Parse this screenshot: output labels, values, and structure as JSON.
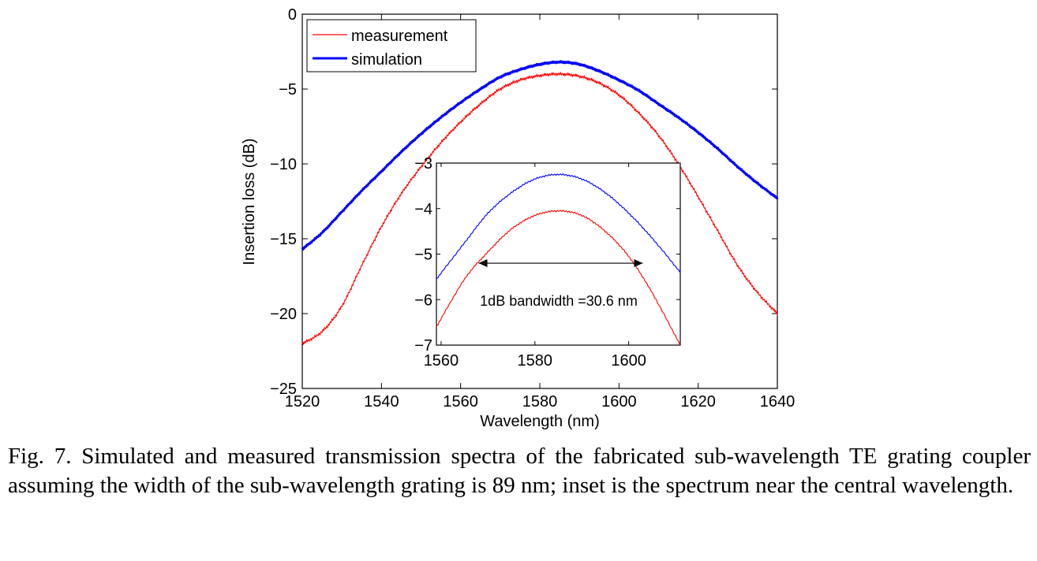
{
  "chart_data": [
    {
      "type": "line",
      "xlabel": "Wavelength (nm)",
      "ylabel": "Insertion loss (dB)",
      "xlim": [
        1520,
        1640
      ],
      "ylim": [
        -25,
        0
      ],
      "xticks": [
        1520,
        1540,
        1560,
        1580,
        1600,
        1620,
        1640
      ],
      "yticks": [
        0,
        -5,
        -10,
        -15,
        -20,
        -25
      ],
      "xtick_labels": [
        "1520",
        "1540",
        "1560",
        "1580",
        "1600",
        "1620",
        "1640"
      ],
      "ytick_labels": [
        "0",
        "−5",
        "−10",
        "−15",
        "−20",
        "−25"
      ],
      "legend_position": "top-left",
      "grid": false,
      "series": [
        {
          "name": "measurement",
          "color": "#ff0000",
          "x": [
            1520,
            1525,
            1530,
            1535,
            1540,
            1545,
            1550,
            1555,
            1560,
            1565,
            1570,
            1575,
            1580,
            1585,
            1590,
            1595,
            1600,
            1605,
            1610,
            1615,
            1620,
            1625,
            1630,
            1635,
            1640
          ],
          "y": [
            -22.0,
            -21.2,
            -19.5,
            -16.8,
            -14.2,
            -12.0,
            -10.2,
            -8.6,
            -7.2,
            -6.0,
            -5.0,
            -4.4,
            -4.1,
            -4.0,
            -4.15,
            -4.6,
            -5.4,
            -6.6,
            -8.1,
            -10.0,
            -12.2,
            -14.5,
            -16.8,
            -18.6,
            -20.0
          ]
        },
        {
          "name": "simulation",
          "color": "#0000ff",
          "x": [
            1520,
            1525,
            1530,
            1535,
            1540,
            1545,
            1550,
            1555,
            1560,
            1565,
            1570,
            1575,
            1580,
            1585,
            1590,
            1595,
            1600,
            1605,
            1610,
            1615,
            1620,
            1625,
            1630,
            1635,
            1640
          ],
          "y": [
            -15.7,
            -14.6,
            -13.2,
            -11.8,
            -10.5,
            -9.2,
            -8.0,
            -6.9,
            -5.9,
            -5.0,
            -4.2,
            -3.7,
            -3.35,
            -3.2,
            -3.35,
            -3.8,
            -4.4,
            -5.1,
            -6.0,
            -6.9,
            -7.9,
            -9.0,
            -10.2,
            -11.3,
            -12.3
          ]
        }
      ]
    },
    {
      "type": "line",
      "inset": true,
      "xlim": [
        1559,
        1611
      ],
      "ylim": [
        -7,
        -3
      ],
      "xticks": [
        1560,
        1580,
        1600
      ],
      "yticks": [
        -3,
        -4,
        -5,
        -6,
        -7
      ],
      "xtick_labels": [
        "1560",
        "1580",
        "1600"
      ],
      "ytick_labels": [
        "−3",
        "−4",
        "−5",
        "−6",
        "−7"
      ],
      "annotation": {
        "text": "1dB bandwidth =30.6 nm",
        "arrow_x_range": [
          1568,
          1603
        ],
        "arrow_y": -5.2
      },
      "series": [
        {
          "color": "#ff0000",
          "x": [
            1559,
            1565,
            1570,
            1575,
            1580,
            1585,
            1590,
            1595,
            1600,
            1605,
            1611
          ],
          "y": [
            -6.6,
            -5.55,
            -4.95,
            -4.45,
            -4.15,
            -4.05,
            -4.15,
            -4.5,
            -5.05,
            -5.85,
            -7.0
          ]
        },
        {
          "color": "#0000ff",
          "x": [
            1559,
            1565,
            1570,
            1575,
            1580,
            1585,
            1590,
            1595,
            1600,
            1605,
            1611
          ],
          "y": [
            -5.55,
            -4.75,
            -4.1,
            -3.65,
            -3.35,
            -3.25,
            -3.35,
            -3.65,
            -4.1,
            -4.65,
            -5.4
          ]
        }
      ]
    }
  ],
  "caption": "Fig. 7. Simulated and measured transmission spectra of the fabricated sub-wavelength TE grating coupler assuming the width of the sub-wavelength grating is 89 nm; inset is the spectrum near the central wavelength."
}
